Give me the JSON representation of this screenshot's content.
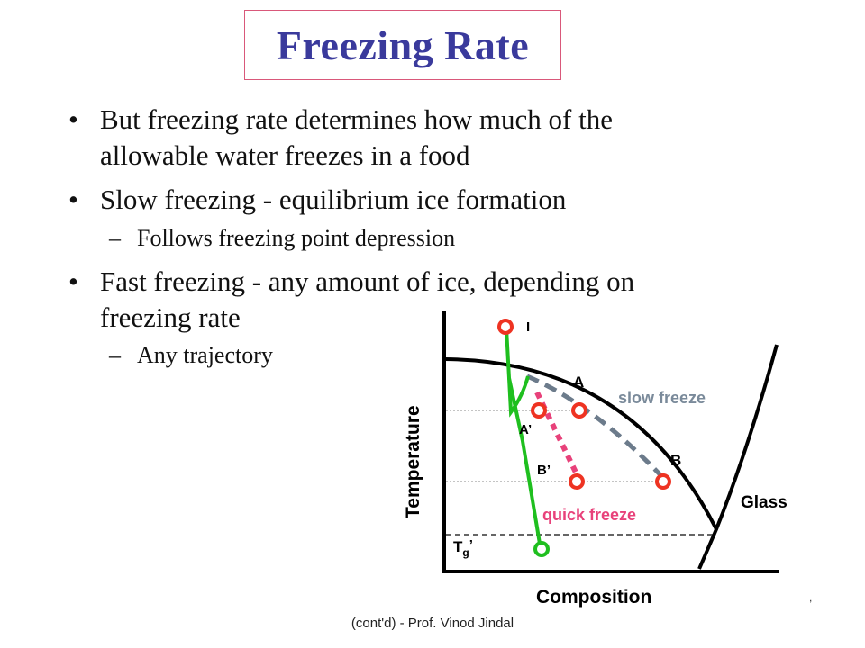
{
  "slide": {
    "title": "Freezing Rate",
    "bullet_marker": "•",
    "sub_marker": "–",
    "bullets": [
      {
        "lines": [
          "But freezing rate determines how much of the",
          "allowable water freezes in a food"
        ]
      },
      {
        "lines": [
          "Slow freezing - equilibrium ice formation"
        ],
        "sub": "Follows freezing point depression"
      },
      {
        "lines": [
          "Fast freezing - any amount of ice, depending on",
          "freezing rate"
        ],
        "sub": "Any trajectory"
      }
    ],
    "footer": "(cont'd) - Prof. Vinod Jindal",
    "corner_mark": ","
  },
  "diagram": {
    "y_axis_label": "Temperature",
    "x_axis_label": "Composition",
    "labels": {
      "I": "I",
      "A": "A",
      "B": "B",
      "A_prime": "A’",
      "B_prime": "B’",
      "Tg": "T",
      "Tg_sub": "g",
      "Tg_prime": "’",
      "slow": "slow freeze",
      "quick": "quick freeze",
      "glass": "Glass"
    },
    "colors": {
      "curve": "#000000",
      "slow_path": "#6c7b8b",
      "quick_path": "#e8417a",
      "trajectory": "#1fbf1f",
      "point": "#ee3322",
      "slow_label": "#7a8a9a",
      "quick_label": "#e8417a"
    }
  }
}
